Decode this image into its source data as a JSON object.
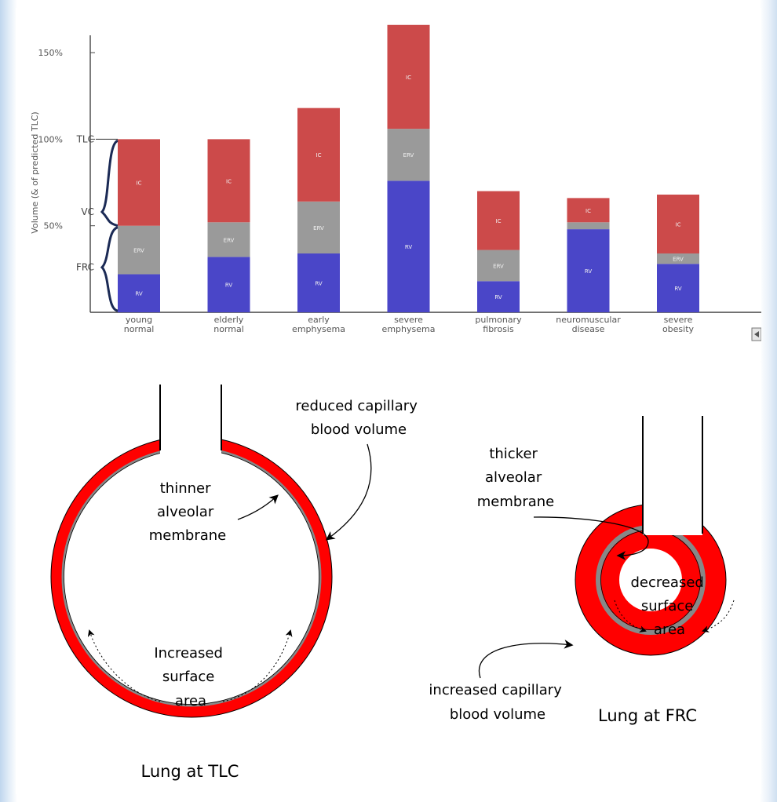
{
  "chart_data": {
    "type": "bar",
    "stacked": true,
    "ylabel": "Volume (& of predicted TLC)",
    "ylim": [
      0,
      160
    ],
    "yticks": [
      {
        "value": 50,
        "label": "50%"
      },
      {
        "value": 100,
        "label": "100%"
      },
      {
        "value": 150,
        "label": "150%"
      }
    ],
    "categories": [
      [
        "young",
        "normal"
      ],
      [
        "elderly",
        "normal"
      ],
      [
        "early",
        "emphysema"
      ],
      [
        "severe",
        "emphysema"
      ],
      [
        "pulmonary",
        "fibrosis"
      ],
      [
        "neuromuscular",
        "disease"
      ],
      [
        "severe",
        "obesity"
      ]
    ],
    "series": [
      {
        "name": "RV",
        "color": "#4a46c8",
        "labels": [
          "RV",
          "RV",
          "RV",
          "RV",
          "RV",
          "RV",
          "RV"
        ],
        "values": [
          22,
          32,
          34,
          76,
          18,
          48,
          28
        ]
      },
      {
        "name": "ERV",
        "color": "#9a9a9a",
        "labels": [
          "ERV",
          "ERV",
          "ERV",
          "ERV",
          "ERV",
          "ERV",
          "ERV"
        ],
        "values": [
          28,
          20,
          30,
          30,
          18,
          4,
          6
        ]
      },
      {
        "name": "IC",
        "color": "#cc4a4a",
        "labels": [
          "IC",
          "IC",
          "IC",
          "IC",
          "IC",
          "IC",
          "IC"
        ],
        "values": [
          50,
          48,
          54,
          60,
          34,
          14,
          34
        ]
      }
    ],
    "brackets": [
      {
        "label": "TLC",
        "value": 100
      },
      {
        "label": "VC",
        "value": 58
      },
      {
        "label": "FRC",
        "value": 26
      }
    ],
    "grid": false,
    "legend": "none"
  },
  "diagram": {
    "left_labels": {
      "top_right": [
        "reduced capillary",
        "blood volume"
      ],
      "inner": [
        "thinner",
        "alveolar",
        "membrane"
      ],
      "bottom": [
        "Increased",
        "surface",
        "area"
      ],
      "caption": "Lung at TLC"
    },
    "right_labels": {
      "top": [
        "thicker",
        "alveolar",
        "membrane"
      ],
      "inner": [
        "decreased",
        "surface",
        "area"
      ],
      "bottom": [
        "increased capillary",
        "blood volume"
      ],
      "caption": "Lung at FRC"
    },
    "colors": {
      "wall": "#ff0000",
      "membrane": "#888888",
      "outline": "#000000"
    }
  }
}
